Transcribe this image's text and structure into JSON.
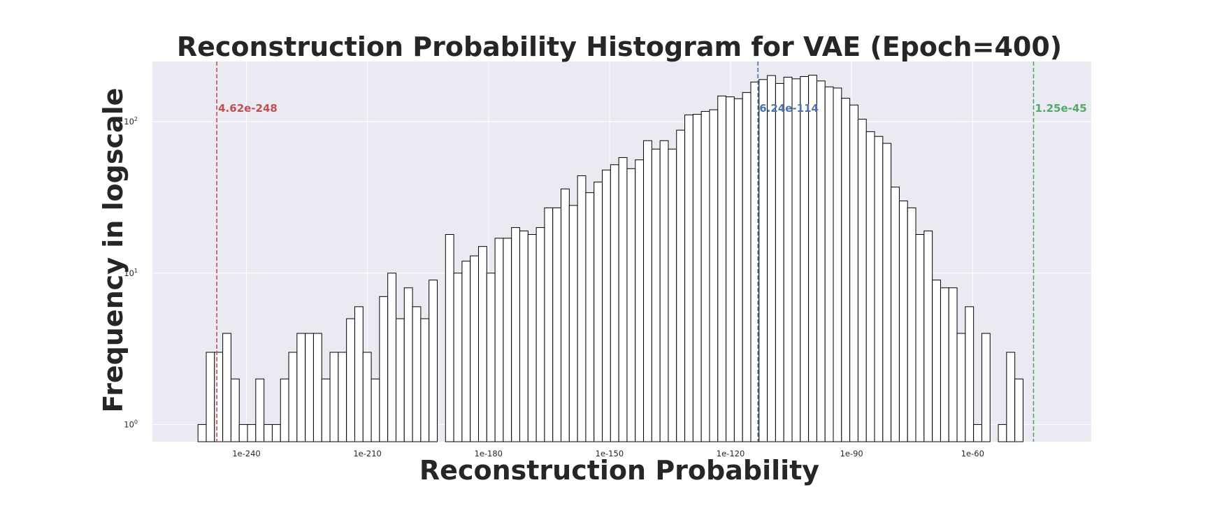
{
  "chart_data": {
    "type": "bar",
    "title": "Reconstruction Probability Histogram for VAE (Epoch=400)",
    "xlabel": "Reconstruction Probability",
    "ylabel": "Frequency in logscale",
    "x_scale": "log",
    "y_scale": "log",
    "x_tick_labels": [
      "1e-240",
      "1e-210",
      "1e-180",
      "1e-150",
      "1e-120",
      "1e-90",
      "1e-60"
    ],
    "x_tick_exponents": [
      -240,
      -210,
      -180,
      -150,
      -120,
      -90,
      -60
    ],
    "y_tick_labels": [
      {
        "base": "10",
        "exp": "0",
        "value": 1
      },
      {
        "base": "10",
        "exp": "1",
        "value": 10
      },
      {
        "base": "10",
        "exp": "2",
        "value": 100
      }
    ],
    "xlim_exponent": [
      -263.3,
      -30.6
    ],
    "ylim": [
      0.77,
      250
    ],
    "grid": true,
    "bin_width_exponent": 2.045,
    "bins_start_exponent": -252.0,
    "counts": [
      1,
      3,
      3,
      4,
      2,
      1,
      1,
      2,
      1,
      1,
      2,
      3,
      4,
      4,
      4,
      2,
      3,
      3,
      5,
      6,
      3,
      2,
      7,
      10,
      5,
      8,
      6,
      5,
      9,
      0,
      18,
      10,
      12,
      13,
      15,
      10,
      17,
      17,
      20,
      19,
      18,
      20,
      27,
      27,
      36,
      28,
      44,
      34,
      40,
      48,
      52,
      58,
      49,
      56,
      75,
      66,
      75,
      66,
      88,
      111,
      112,
      117,
      120,
      148,
      146,
      142,
      156,
      183,
      190,
      202,
      179,
      197,
      192,
      199,
      203,
      186,
      170,
      167,
      143,
      129,
      104,
      86,
      80,
      72,
      37,
      30,
      27,
      18,
      19,
      9,
      8,
      8,
      4,
      6,
      1,
      4,
      0,
      1,
      3,
      2
    ],
    "annotations": [
      {
        "label": "4.62e-248",
        "exponent": -247.335,
        "color": "#c44e52"
      },
      {
        "label": "6.24e-114",
        "exponent": -113.205,
        "color": "#4c72b0"
      },
      {
        "label": "1.25e-45",
        "exponent": -44.903,
        "color": "#55a868"
      }
    ],
    "colors": {
      "background": "#eaeaf2",
      "grid": "#ffffff",
      "bar_fill": "#ffffff",
      "bar_edge": "#000000",
      "text": "#262626"
    }
  }
}
